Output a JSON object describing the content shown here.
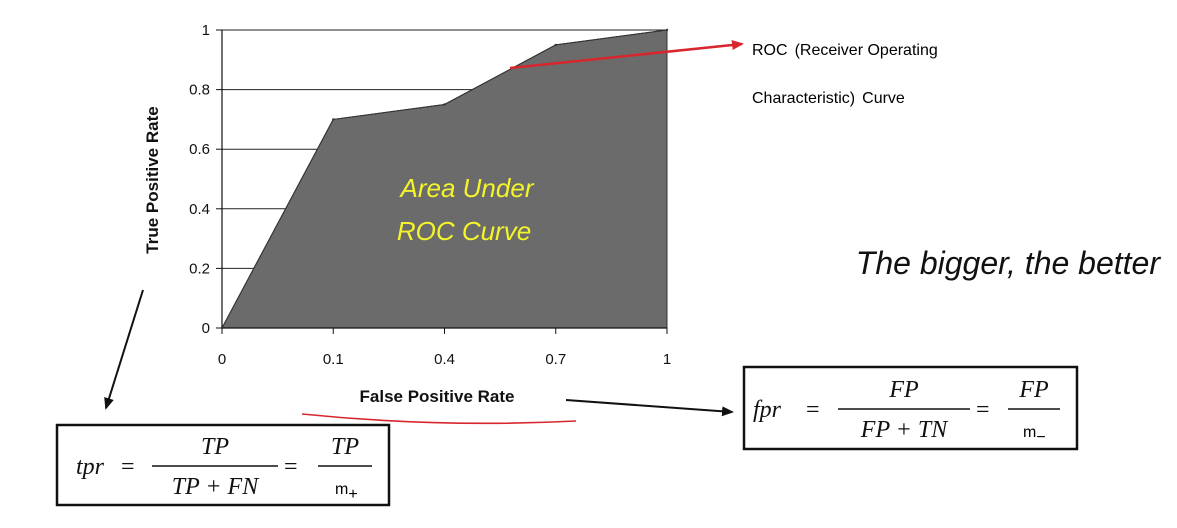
{
  "chart_data": {
    "type": "area",
    "xlabel": "False Positive Rate",
    "ylabel": "True Positive Rate",
    "x_ticks": [
      "0",
      "0.1",
      "0.4",
      "0.7",
      "1"
    ],
    "y_ticks": [
      "0",
      "0.2",
      "0.4",
      "0.6",
      "0.8",
      "1"
    ],
    "ylim": [
      0,
      1
    ],
    "grid": "horizontal",
    "fill_color": "#6b6b6b",
    "points": [
      {
        "x_tick": 0,
        "y": 0
      },
      {
        "x_tick": 1,
        "y": 0.7
      },
      {
        "x_tick": 2,
        "y": 0.75
      },
      {
        "x_tick": 3,
        "y": 0.95
      },
      {
        "x_tick": 4,
        "y": 1.0
      }
    ],
    "area_label": [
      "Area Under",
      "ROC Curve"
    ]
  },
  "annotations": {
    "roc_title_line1_big": "ROC",
    "roc_title_line1_small": "(Receiver Operating",
    "roc_title_line2_small": "Characteristic)",
    "roc_title_line2_big": "Curve",
    "roc_color": "#d8262e",
    "tagline": "The bigger, the better",
    "underline_color": "#d8262e"
  },
  "formulas": {
    "tpr": {
      "lhs": "tpr",
      "eq": "=",
      "num1": "TP",
      "den1": "TP + FN",
      "num2": "TP",
      "den2_base": "m",
      "den2_sub": "+"
    },
    "fpr": {
      "lhs": "fpr",
      "eq": "=",
      "num1": "FP",
      "den1": "FP + TN",
      "num2": "FP",
      "den2_base": "m",
      "den2_sub": "−"
    }
  }
}
